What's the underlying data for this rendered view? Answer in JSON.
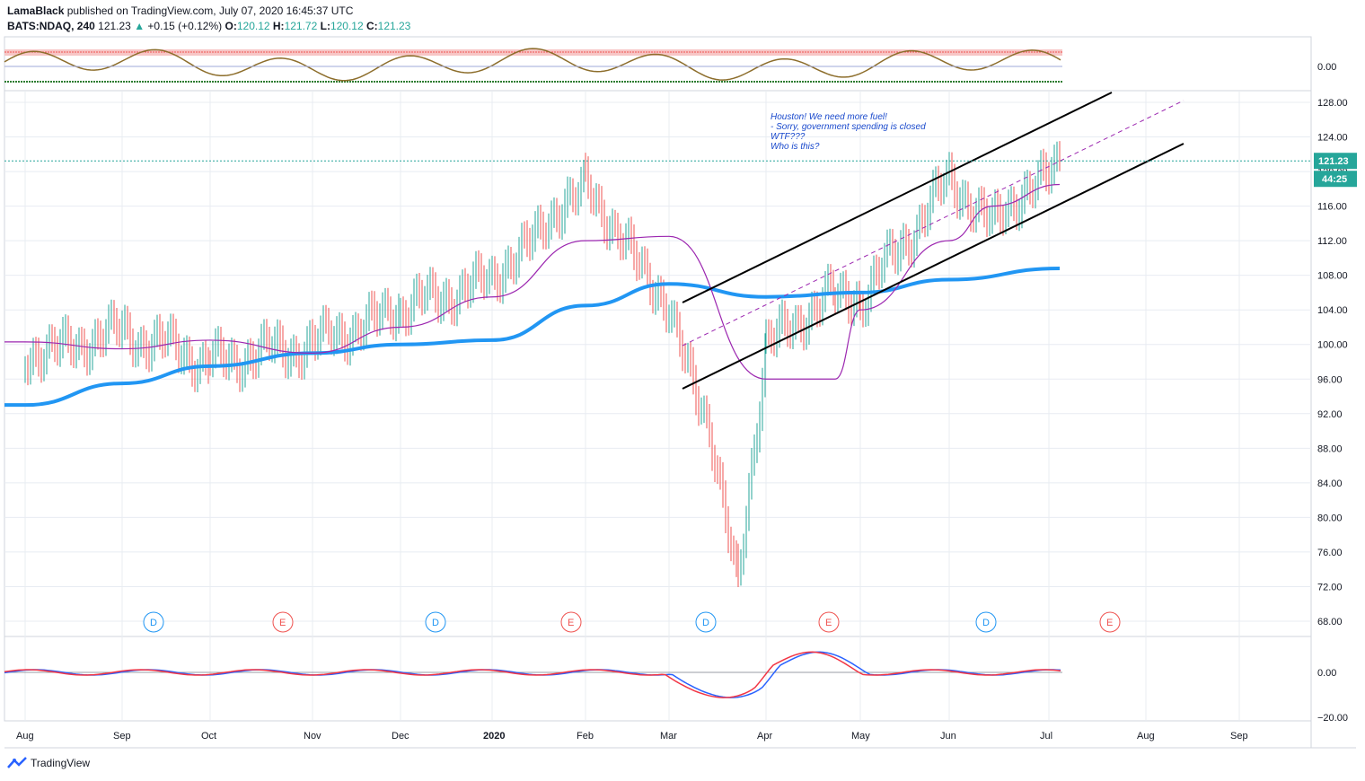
{
  "header": {
    "author": "LamaBlack",
    "published_text": "published on TradingView.com, July 07, 2020 16:45:37 UTC",
    "symbol": "BATS:NDAQ, 240",
    "last": "121.23",
    "change_arrow": "▲",
    "change": "+0.15 (+0.12%)",
    "o_label": "O:",
    "o": "120.12",
    "h_label": "H:",
    "h": "121.72",
    "l_label": "L:",
    "l": "120.12",
    "c_label": "C:",
    "c": "121.23"
  },
  "colors": {
    "up": "#26a69a",
    "down": "#ef5350",
    "ma_slow": "#2196f3",
    "ma_fast": "#9c27b0",
    "channel": "#000000",
    "macd": "#2962ff",
    "signal": "#f23645",
    "grid": "#e8ecf2",
    "price_tag": "#26a69a"
  },
  "brand": {
    "logo": "tradingview-logo-icon",
    "name": "TradingView"
  },
  "chart_data": {
    "type": "line",
    "title": "",
    "ylim": [
      68,
      128
    ],
    "yticks": [
      "128.00",
      "124.00",
      "120.00",
      "116.00",
      "112.00",
      "108.00",
      "104.00",
      "100.00",
      "96.00",
      "92.00",
      "88.00",
      "84.00",
      "80.00",
      "76.00",
      "72.00",
      "68.00"
    ],
    "xticks": [
      "Aug",
      "Sep",
      "Oct",
      "Nov",
      "Dec",
      "2020",
      "Feb",
      "Mar",
      "Apr",
      "May",
      "Jun",
      "Jul",
      "Aug",
      "Sep"
    ],
    "last_price": "121.23",
    "countdown": "44:25",
    "annotation": [
      "Houston! We need more fuel!",
      "- Sorry, government spending is closed",
      "WTF???",
      "Who is this?"
    ],
    "events": [
      "D",
      "E",
      "D",
      "E",
      "D",
      "E",
      "D",
      "E"
    ],
    "top_indicator_tick": "0.00",
    "bottom_indicator_ticks": [
      "0.00",
      "−20.00"
    ],
    "series": [
      {
        "values_by_month": {
          "Aug": 98.5,
          "Sep": 101.5,
          "Oct": 98.0,
          "Nov": 100.0,
          "Dec": 104.0,
          "2020": 107.5,
          "Feb": 118.5,
          "Mar": 104.0,
          "Mar-mid": 90.0,
          "Mar-low": 72.0,
          "Apr": 100.0,
          "Apr-late": 106.0,
          "May": 105.0,
          "Jun": 119.0,
          "Jun-mid": 114.0,
          "Jul": 121.23
        }
      },
      {
        "values_by_month": {
          "Aug": 93.0,
          "Sep": 95.5,
          "Oct": 97.5,
          "Nov": 99.0,
          "Dec": 100.0,
          "2020": 100.5,
          "Feb": 104.5,
          "Mar": 107.0,
          "Apr": 105.5,
          "May": 106.0,
          "Jun": 107.5,
          "Jul": 108.8
        }
      },
      {
        "values_by_month": {
          "Aug": 100.3,
          "Sep": 99.5,
          "Oct": 100.5,
          "Nov": 99.0,
          "Dec": 102.0,
          "2020": 105.5,
          "Feb": 112.0,
          "Mar": 112.5,
          "Apr": 96.0,
          "Apr-late": 96.0,
          "May": 104.0,
          "Jun": 112.0,
          "Jun-mid": 116.0,
          "Jul": 118.5
        }
      }
    ]
  }
}
